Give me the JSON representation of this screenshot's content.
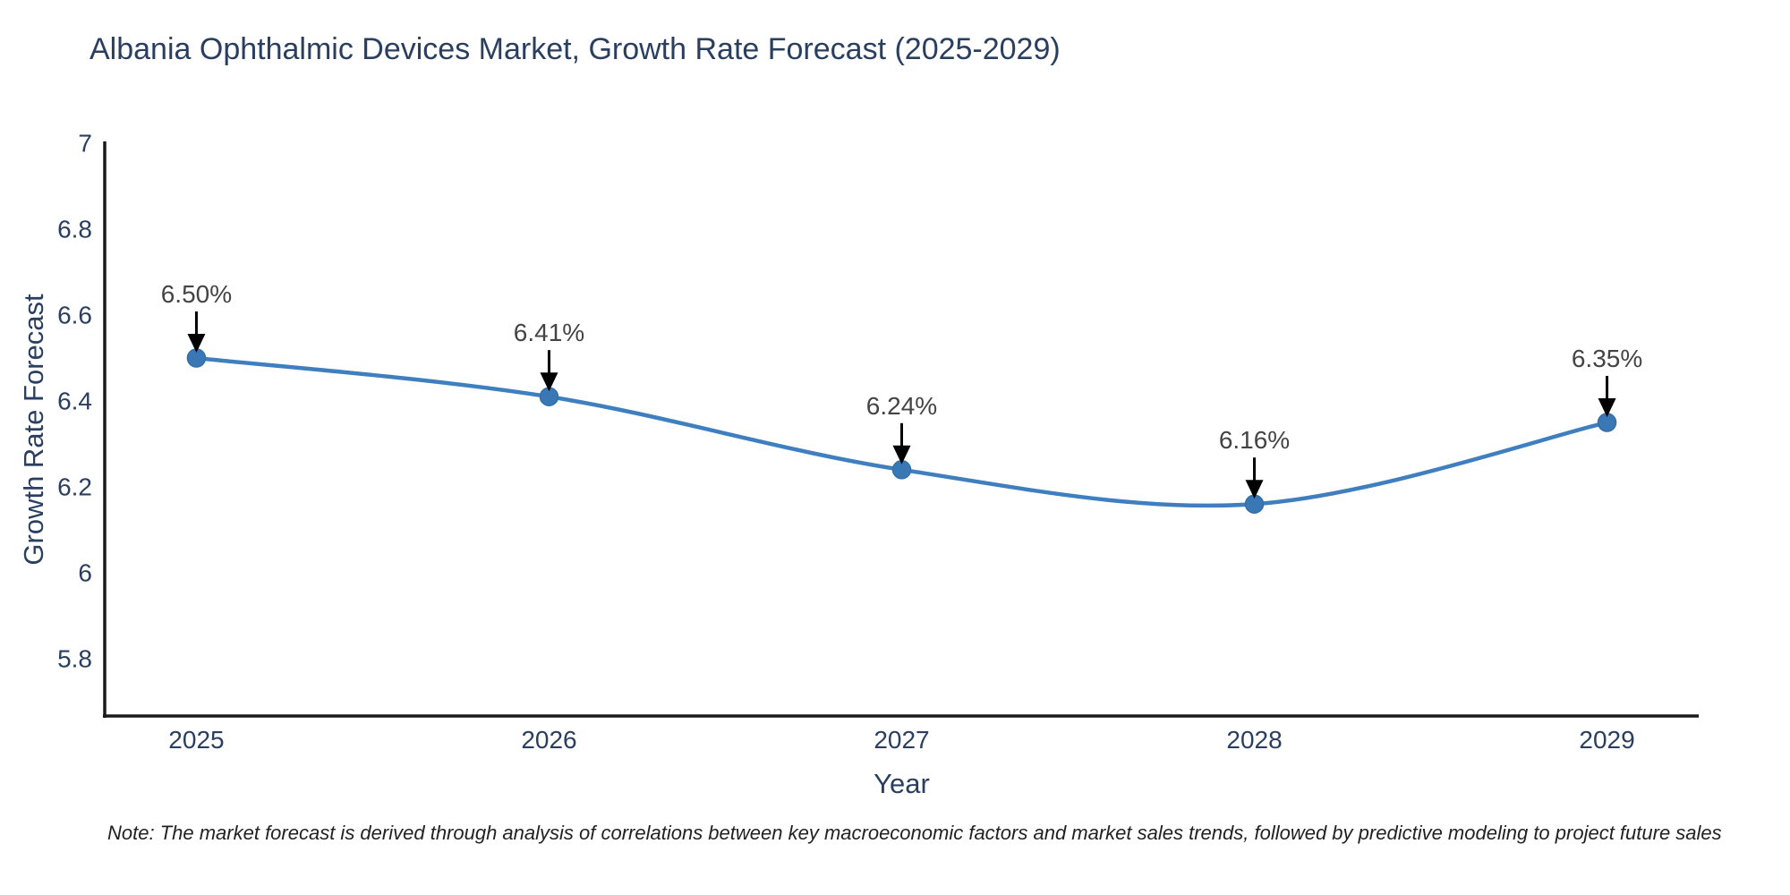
{
  "chart_data": {
    "type": "line",
    "title": "Albania Ophthalmic Devices Market, Growth Rate Forecast (2025-2029)",
    "xlabel": "Year",
    "ylabel": "Growth Rate Forecast",
    "x": [
      2025,
      2026,
      2027,
      2028,
      2029
    ],
    "values": [
      6.5,
      6.41,
      6.24,
      6.16,
      6.35
    ],
    "point_labels": [
      "6.50%",
      "6.41%",
      "6.24%",
      "6.16%",
      "6.35%"
    ],
    "categories": [
      "2025",
      "2026",
      "2027",
      "2028",
      "2029"
    ],
    "yticks": {
      "values": [
        7,
        6.8,
        6.6,
        6.4,
        6.2,
        6,
        5.8
      ],
      "labels": [
        "7",
        "6.8",
        "6.6",
        "6.4",
        "6.2",
        "6",
        "5.8"
      ]
    },
    "ylim": [
      5.6667,
      7.0
    ],
    "xlim": [
      2024.74,
      2029.26
    ],
    "grid": false,
    "legend": "none",
    "line_shape": "spline",
    "colors": {
      "line": "#3f7fbf",
      "marker": "#3a78b5",
      "marker_edge": "#356fa8",
      "axis": "#1a1a1a",
      "tick_text": "#2a3f5f",
      "annotation_text": "#444444",
      "annotation_arrow": "#000000",
      "title_text": "#2a3f5f"
    }
  },
  "note": {
    "text": "Note: The market forecast is derived through analysis of correlations between key macroeconomic factors and market sales trends, followed by predictive modeling to project future sales"
  }
}
